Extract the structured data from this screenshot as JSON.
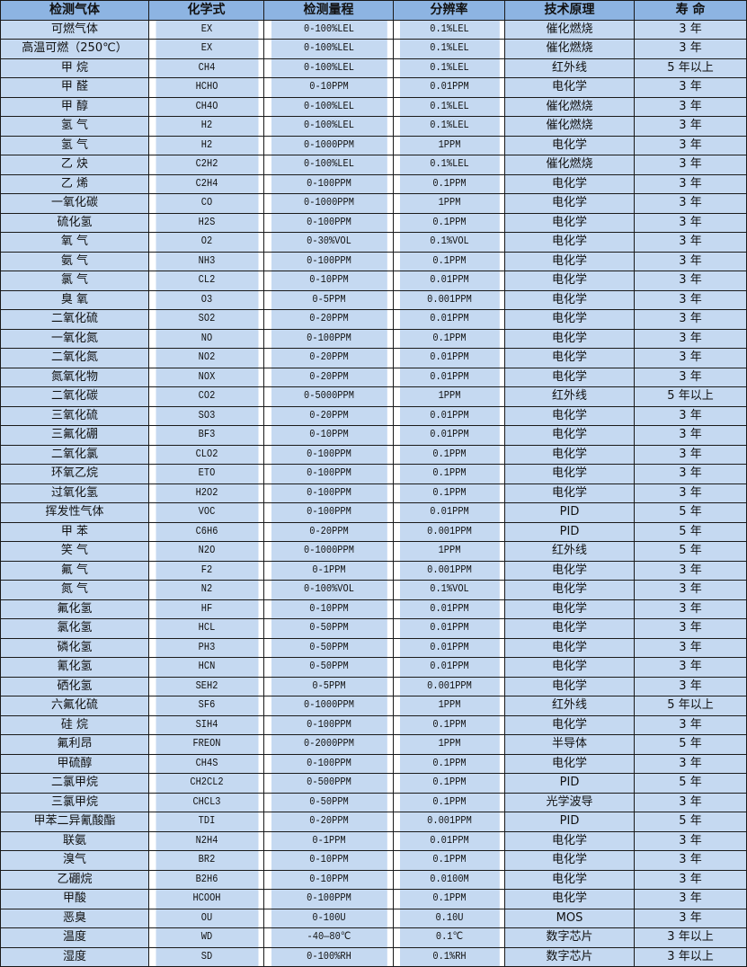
{
  "colors": {
    "header_bg": "#8db4e2",
    "row_bg": "#c5d9f1",
    "border": "#1a1a1a"
  },
  "headers": [
    "检测气体",
    "化学式",
    "检测量程",
    "分辨率",
    "技术原理",
    "寿 命"
  ],
  "rows": [
    [
      "可燃气体",
      "EX",
      "0-100%LEL",
      "0.1%LEL",
      "催化燃烧",
      "3 年"
    ],
    [
      "高温可燃（250℃）",
      "EX",
      "0-100%LEL",
      "0.1%LEL",
      "催化燃烧",
      "3 年"
    ],
    [
      "甲 烷",
      "CH4",
      "0-100%LEL",
      "0.1%LEL",
      "红外线",
      "5 年以上"
    ],
    [
      "甲 醛",
      "HCHO",
      "0-10PPM",
      "0.01PPM",
      "电化学",
      "3 年"
    ],
    [
      "甲 醇",
      "CH4O",
      "0-100%LEL",
      "0.1%LEL",
      "催化燃烧",
      "3 年"
    ],
    [
      "氢 气",
      "H2",
      "0-100%LEL",
      "0.1%LEL",
      "催化燃烧",
      "3 年"
    ],
    [
      "氢 气",
      "H2",
      "0-1000PPM",
      "1PPM",
      "电化学",
      "3 年"
    ],
    [
      "乙 炔",
      "C2H2",
      "0-100%LEL",
      "0.1%LEL",
      "催化燃烧",
      "3 年"
    ],
    [
      "乙 烯",
      "C2H4",
      "0-100PPM",
      "0.1PPM",
      "电化学",
      "3 年"
    ],
    [
      "一氧化碳",
      "CO",
      "0-1000PPM",
      "1PPM",
      "电化学",
      "3 年"
    ],
    [
      "硫化氢",
      "H2S",
      "0-100PPM",
      "0.1PPM",
      "电化学",
      "3 年"
    ],
    [
      "氧 气",
      "O2",
      "0-30%VOL",
      "0.1%VOL",
      "电化学",
      "3 年"
    ],
    [
      "氨 气",
      "NH3",
      "0-100PPM",
      "0.1PPM",
      "电化学",
      "3 年"
    ],
    [
      "氯 气",
      "CL2",
      "0-10PPM",
      "0.01PPM",
      "电化学",
      "3 年"
    ],
    [
      "臭 氧",
      "O3",
      "0-5PPM",
      "0.001PPM",
      "电化学",
      "3 年"
    ],
    [
      "二氧化硫",
      "SO2",
      "0-20PPM",
      "0.01PPM",
      "电化学",
      "3 年"
    ],
    [
      "一氧化氮",
      "NO",
      "0-100PPM",
      "0.1PPM",
      "电化学",
      "3 年"
    ],
    [
      "二氧化氮",
      "NO2",
      "0-20PPM",
      "0.01PPM",
      "电化学",
      "3 年"
    ],
    [
      "氮氧化物",
      "NOX",
      "0-20PPM",
      "0.01PPM",
      "电化学",
      "3 年"
    ],
    [
      "二氧化碳",
      "CO2",
      "0-5000PPM",
      "1PPM",
      "红外线",
      "5 年以上"
    ],
    [
      "三氧化硫",
      "SO3",
      "0-20PPM",
      "0.01PPM",
      "电化学",
      "3 年"
    ],
    [
      "三氟化硼",
      "BF3",
      "0-10PPM",
      "0.01PPM",
      "电化学",
      "3 年"
    ],
    [
      "二氧化氯",
      "CLO2",
      "0-100PPM",
      "0.1PPM",
      "电化学",
      "3 年"
    ],
    [
      "环氧乙烷",
      "ETO",
      "0-100PPM",
      "0.1PPM",
      "电化学",
      "3 年"
    ],
    [
      "过氧化氢",
      "H2O2",
      "0-100PPM",
      "0.1PPM",
      "电化学",
      "3 年"
    ],
    [
      "挥发性气体",
      "VOC",
      "0-100PPM",
      "0.01PPM",
      "PID",
      "5 年"
    ],
    [
      "甲 苯",
      "C6H6",
      "0-20PPM",
      "0.001PPM",
      "PID",
      "5 年"
    ],
    [
      "笑 气",
      "N2O",
      "0-1000PPM",
      "1PPM",
      "红外线",
      "5 年"
    ],
    [
      "氟 气",
      "F2",
      "0-1PPM",
      "0.001PPM",
      "电化学",
      "3 年"
    ],
    [
      "氮 气",
      "N2",
      "0-100%VOL",
      "0.1%VOL",
      "电化学",
      "3 年"
    ],
    [
      "氟化氢",
      "HF",
      "0-10PPM",
      "0.01PPM",
      "电化学",
      "3 年"
    ],
    [
      "氯化氢",
      "HCL",
      "0-50PPM",
      "0.01PPM",
      "电化学",
      "3 年"
    ],
    [
      "磷化氢",
      "PH3",
      "0-50PPM",
      "0.01PPM",
      "电化学",
      "3 年"
    ],
    [
      "氰化氢",
      "HCN",
      "0-50PPM",
      "0.01PPM",
      "电化学",
      "3 年"
    ],
    [
      "硒化氢",
      "SEH2",
      "0-5PPM",
      "0.001PPM",
      "电化学",
      "3 年"
    ],
    [
      "六氟化硫",
      "SF6",
      "0-1000PPM",
      "1PPM",
      "红外线",
      "5 年以上"
    ],
    [
      "硅 烷",
      "SIH4",
      "0-100PPM",
      "0.1PPM",
      "电化学",
      "3 年"
    ],
    [
      "氟利昂",
      "FREON",
      "0-2000PPM",
      "1PPM",
      "半导体",
      "5 年"
    ],
    [
      "甲硫醇",
      "CH4S",
      "0-100PPM",
      "0.1PPM",
      "电化学",
      "3 年"
    ],
    [
      "二氯甲烷",
      "CH2CL2",
      "0-500PPM",
      "0.1PPM",
      "PID",
      "5 年"
    ],
    [
      "三氯甲烷",
      "CHCL3",
      "0-50PPM",
      "0.1PPM",
      "光学波导",
      "3 年"
    ],
    [
      "甲苯二异氰酸酯",
      "TDI",
      "0-20PPM",
      "0.001PPM",
      "PID",
      "5 年"
    ],
    [
      "联氨",
      "N2H4",
      "0-1PPM",
      "0.01PPM",
      "电化学",
      "3 年"
    ],
    [
      "溴气",
      "BR2",
      "0-10PPM",
      "0.1PPM",
      "电化学",
      "3 年"
    ],
    [
      "乙硼烷",
      "B2H6",
      "0-10PPM",
      "0.0100M",
      "电化学",
      "3 年"
    ],
    [
      "甲酸",
      "HCOOH",
      "0-100PPM",
      "0.1PPM",
      "电化学",
      "3 年"
    ],
    [
      "恶臭",
      "OU",
      "0-100U",
      "0.10U",
      "MOS",
      "3 年"
    ],
    [
      "温度",
      "WD",
      "-40—80℃",
      "0.1℃",
      "数字芯片",
      "3 年以上"
    ],
    [
      "湿度",
      "SD",
      "0-100%RH",
      "0.1%RH",
      "数字芯片",
      "3 年以上"
    ]
  ]
}
